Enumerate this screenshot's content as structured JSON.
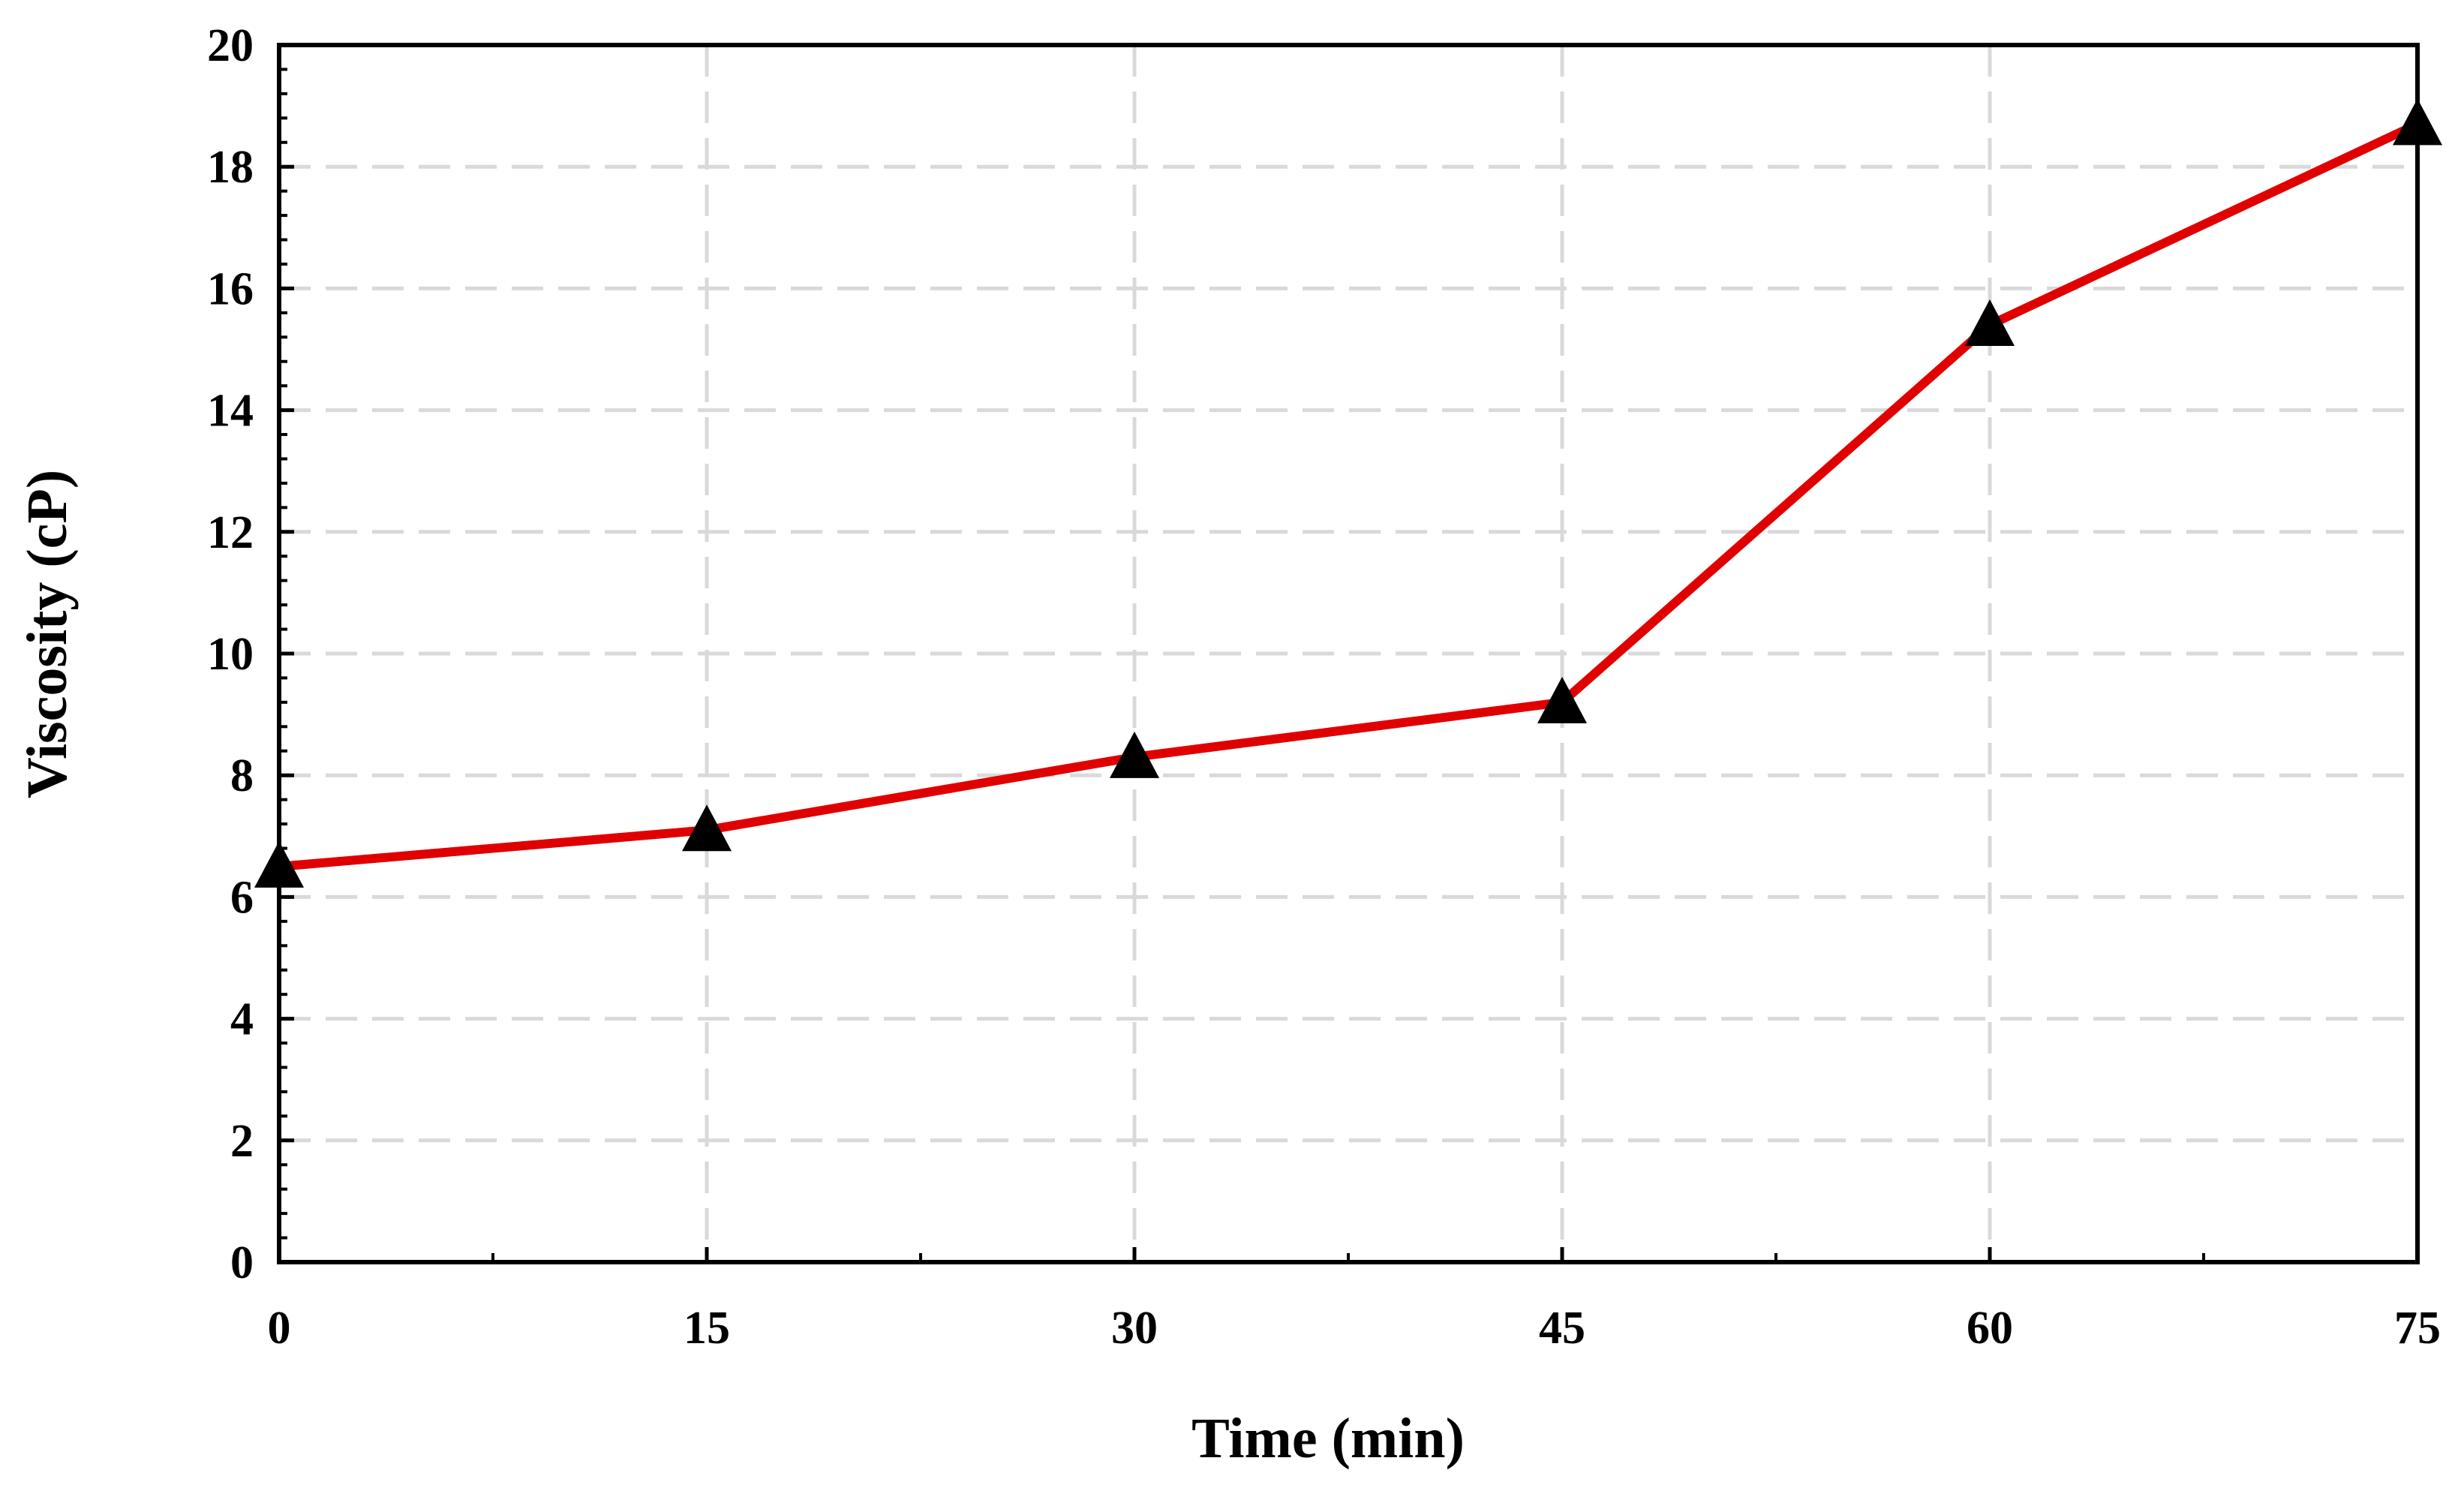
{
  "chart_data": {
    "type": "line",
    "title": "",
    "xlabel": "Time (min)",
    "ylabel": "Viscosity (cP)",
    "x": [
      0,
      15,
      30,
      45,
      60,
      75
    ],
    "series": [
      {
        "name": "",
        "values": [
          6.5,
          7.1,
          8.3,
          9.2,
          15.4,
          18.7
        ],
        "color": "#e00000",
        "marker": "triangle",
        "marker_color": "#000000"
      }
    ],
    "xlim": [
      0,
      75
    ],
    "ylim": [
      0,
      20
    ],
    "x_ticks": [
      0,
      15,
      30,
      45,
      60,
      75
    ],
    "y_ticks": [
      0,
      2,
      4,
      6,
      8,
      10,
      12,
      14,
      16,
      18,
      20
    ],
    "grid": true,
    "grid_style": "dashed",
    "grid_color": "#d9d9d9",
    "legend": "none"
  }
}
